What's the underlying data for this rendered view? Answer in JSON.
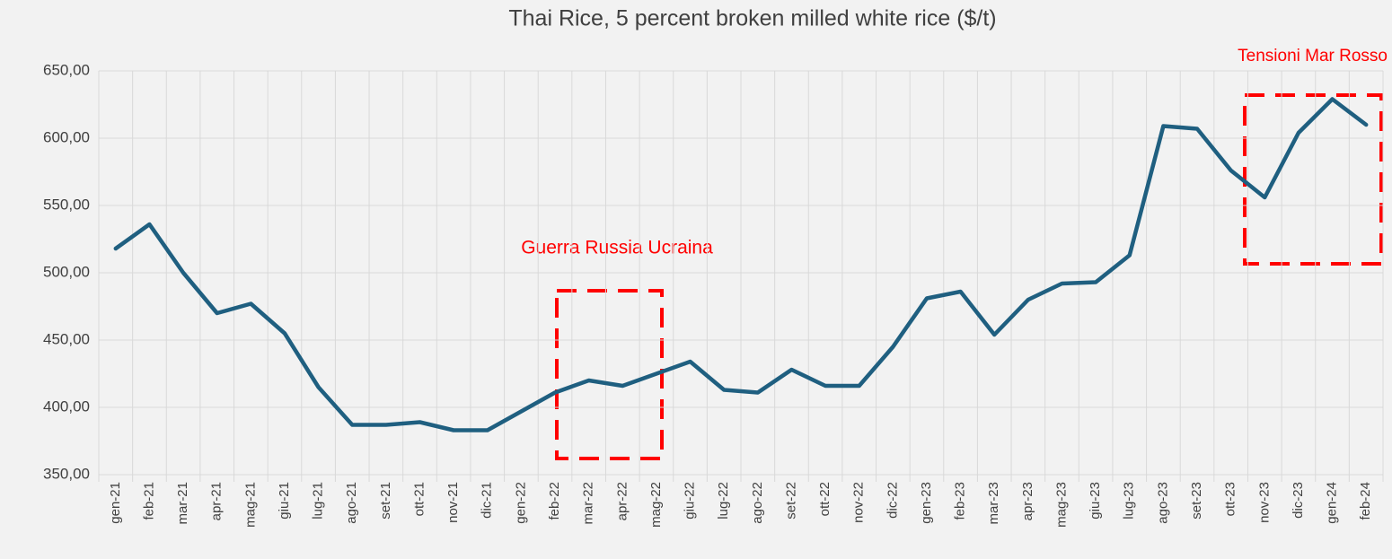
{
  "chart_data": {
    "type": "line",
    "title": "Thai Rice, 5 percent broken milled white rice ($/t)",
    "annotations": [
      "Guerra Russia Ucraina",
      "Tensioni Mar Rosso"
    ],
    "categories": [
      "gen-21",
      "feb-21",
      "mar-21",
      "apr-21",
      "mag-21",
      "giu-21",
      "lug-21",
      "ago-21",
      "set-21",
      "ott-21",
      "nov-21",
      "dic-21",
      "gen-22",
      "feb-22",
      "mar-22",
      "apr-22",
      "mag-22",
      "giu-22",
      "lug-22",
      "ago-22",
      "set-22",
      "ott-22",
      "nov-22",
      "dic-22",
      "gen-23",
      "feb-23",
      "mar-23",
      "apr-23",
      "mag-23",
      "giu-23",
      "lug-23",
      "ago-23",
      "set-23",
      "ott-23",
      "nov-23",
      "dic-23",
      "gen-24",
      "feb-24"
    ],
    "series": [
      {
        "color": "#1f5f80",
        "values": [
          518,
          536,
          500,
          470,
          477,
          455,
          415,
          387,
          387,
          389,
          383,
          383,
          397,
          411,
          420,
          416,
          425,
          434,
          413,
          411,
          428,
          416,
          416,
          445,
          481,
          486,
          454,
          480,
          492,
          493,
          513,
          609,
          607,
          576,
          556,
          604,
          629,
          610
        ]
      }
    ],
    "ylim": [
      350,
      650
    ],
    "yticks": [
      {
        "value": 350,
        "label": "350,00"
      },
      {
        "value": 400,
        "label": "400,00"
      },
      {
        "value": 450,
        "label": "450,00"
      },
      {
        "value": 500,
        "label": "500,00"
      },
      {
        "value": 550,
        "label": "550,00"
      },
      {
        "value": 600,
        "label": "600,00"
      },
      {
        "value": 650,
        "label": "650,00"
      }
    ],
    "grid": true
  }
}
